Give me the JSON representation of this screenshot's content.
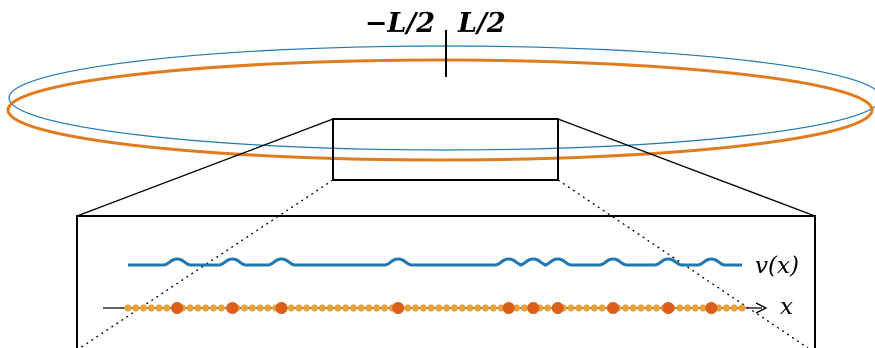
{
  "labels": {
    "left_boundary": "−L/2",
    "right_boundary": "L/2",
    "potential": "v(x)",
    "axis": "x"
  },
  "colors": {
    "ring_blue": "#1f77b4",
    "ring_orange": "#e07b1e",
    "potential_curve": "#1f77b4",
    "particle_small": "#e8a23a",
    "particle_large": "#d95f1a",
    "outline": "#000000"
  },
  "particles": {
    "small_count": 80,
    "large_positions_fraction": [
      0.08,
      0.17,
      0.25,
      0.44,
      0.62,
      0.66,
      0.7,
      0.79,
      0.88,
      0.95
    ]
  }
}
